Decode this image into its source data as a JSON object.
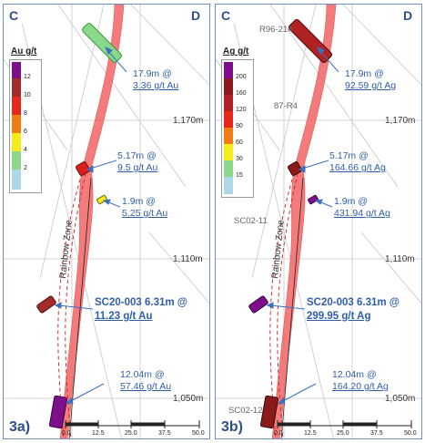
{
  "panels": {
    "a": {
      "figure_label": "3a)",
      "corner_left": "C",
      "corner_right": "D",
      "legend": {
        "title": "Au g/t",
        "ticks": [
          "12",
          "10",
          "8",
          "6",
          "4",
          "2"
        ],
        "colors": [
          "#7d0f8a",
          "#a52a2a",
          "#e8261c",
          "#f27b13",
          "#f5ec1a",
          "#8ad98a",
          "#add8e6"
        ]
      },
      "elevations": [
        "1,170m",
        "1,110m",
        "1,050m"
      ],
      "zone_label": "Rainbow Zone",
      "drillholes": [],
      "intercepts": [
        {
          "line1": "17.9m @",
          "line2": "3.36 g/t Au",
          "bold": false
        },
        {
          "line1": "5.17m @",
          "line2": "9.5 g/t Au",
          "bold": false
        },
        {
          "line1": "1.9m @",
          "line2": "5.25 g/t Au",
          "bold": false
        },
        {
          "line1": "SC20-003  6.31m @",
          "line2": "11.23 g/t Au",
          "bold": true
        },
        {
          "line1": "12.04m @",
          "line2": "57.46 g/t Au",
          "bold": false
        }
      ],
      "scale": [
        "0.0",
        "12.5",
        "25.0",
        "37.5",
        "50.0"
      ]
    },
    "b": {
      "figure_label": "3b)",
      "corner_left": "C",
      "corner_right": "D",
      "legend": {
        "title": "Ag g/t",
        "ticks": [
          "200",
          "160",
          "120",
          "90",
          "60",
          "30",
          "15"
        ],
        "colors": [
          "#7d0f8a",
          "#8b1a1a",
          "#b22222",
          "#e8261c",
          "#f27b13",
          "#f5ec1a",
          "#8ad98a",
          "#add8e6"
        ]
      },
      "elevations": [
        "1,170m",
        "1,110m",
        "1,050m"
      ],
      "zone_label": "Rainbow Zone",
      "drillholes": [
        "R96-214",
        "87-R4",
        "SC02-11",
        "SC02-12"
      ],
      "intercepts": [
        {
          "line1": "17.9m @",
          "line2": "92.59 g/t Ag",
          "bold": false
        },
        {
          "line1": "5.17m @",
          "line2": "164.66 g/t Ag",
          "bold": false
        },
        {
          "line1": "1.9m @",
          "line2": "431.94 g/t Ag",
          "bold": false
        },
        {
          "line1": "SC20-003  6.31m @",
          "line2": "299.95 g/t Ag",
          "bold": true
        },
        {
          "line1": "12.04m @",
          "line2": "164.20 g/t Ag",
          "bold": false
        }
      ],
      "scale": [
        "0.0",
        "12.5",
        "25.0",
        "37.5",
        "50.0"
      ]
    }
  }
}
